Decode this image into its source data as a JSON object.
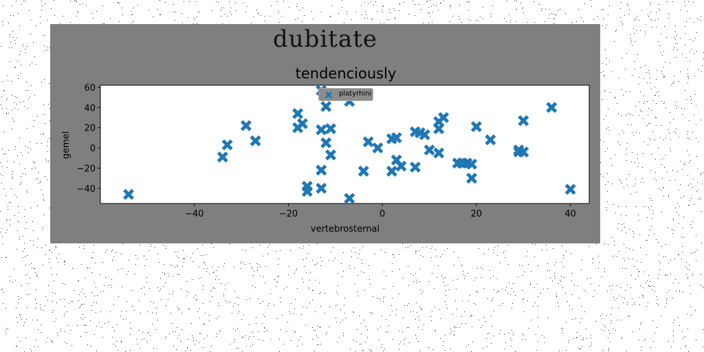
{
  "chart_data": {
    "type": "scatter",
    "suptitle": "dubitate",
    "title": "tendenciously",
    "xlabel": "vertebrosternal",
    "ylabel": "gemel",
    "xlim": [
      -60,
      44
    ],
    "ylim": [
      -55,
      62
    ],
    "xticks": [
      -40,
      -20,
      0,
      20,
      40
    ],
    "xtick_labels": [
      "−40",
      "−20",
      "0",
      "20",
      "40"
    ],
    "yticks": [
      -40,
      -20,
      0,
      20,
      40,
      60
    ],
    "yticks_labels": [
      "−40",
      "−20",
      "0",
      "20",
      "40",
      "60"
    ],
    "marker": "X",
    "legend_location": "upper center",
    "figure_background": "#7f7f7f",
    "axes_background": "#ffffff",
    "series": [
      {
        "name": "platyrhini",
        "color": "#1f77b4",
        "points": [
          [
            -54,
            -46
          ],
          [
            -34,
            -9
          ],
          [
            -33,
            3
          ],
          [
            -29,
            22
          ],
          [
            -27,
            7
          ],
          [
            -18,
            34
          ],
          [
            -18,
            20
          ],
          [
            -17,
            24
          ],
          [
            -16,
            -38
          ],
          [
            -16,
            -43
          ],
          [
            -13,
            57
          ],
          [
            -13,
            18
          ],
          [
            -13,
            -22
          ],
          [
            -13,
            -40
          ],
          [
            -12,
            41
          ],
          [
            -12,
            5
          ],
          [
            -11,
            19
          ],
          [
            -11,
            -7
          ],
          [
            -7,
            46
          ],
          [
            -7,
            -50
          ],
          [
            -4,
            -23
          ],
          [
            -3,
            6
          ],
          [
            -1,
            0
          ],
          [
            2,
            9
          ],
          [
            3,
            10
          ],
          [
            2,
            -23
          ],
          [
            3,
            -12
          ],
          [
            4,
            -18
          ],
          [
            7,
            -19
          ],
          [
            7,
            16
          ],
          [
            8,
            15
          ],
          [
            9,
            13
          ],
          [
            10,
            -2
          ],
          [
            12,
            26
          ],
          [
            13,
            30
          ],
          [
            12,
            19
          ],
          [
            12,
            -5
          ],
          [
            16,
            -15
          ],
          [
            17,
            -15
          ],
          [
            18,
            -15
          ],
          [
            19,
            -16
          ],
          [
            19,
            -30
          ],
          [
            20,
            21
          ],
          [
            23,
            8
          ],
          [
            29,
            -2
          ],
          [
            29,
            -4
          ],
          [
            30,
            -4
          ],
          [
            30,
            27
          ],
          [
            36,
            40
          ],
          [
            40,
            -41
          ]
        ]
      }
    ]
  }
}
